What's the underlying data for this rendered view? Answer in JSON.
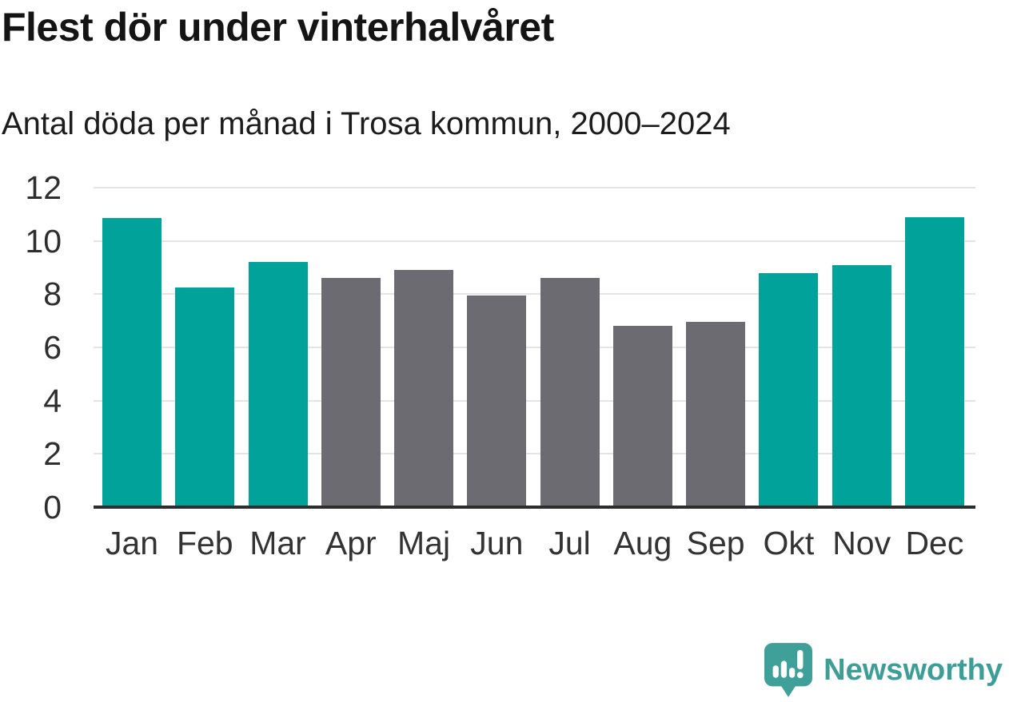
{
  "header": {
    "title": "Flest dör under vinterhalvåret",
    "subtitle": "Antal döda per månad i Trosa kommun, 2000–2024"
  },
  "chart_data": {
    "type": "bar",
    "title": "Flest dör under vinterhalvåret",
    "subtitle": "Antal döda per månad i Trosa kommun, 2000–2024",
    "categories": [
      "Jan",
      "Feb",
      "Mar",
      "Apr",
      "Maj",
      "Jun",
      "Jul",
      "Aug",
      "Sep",
      "Okt",
      "Nov",
      "Dec"
    ],
    "values": [
      10.85,
      8.25,
      9.2,
      8.6,
      8.9,
      7.95,
      8.6,
      6.8,
      6.95,
      8.8,
      9.1,
      10.9
    ],
    "bar_colors": [
      "#00a29a",
      "#00a29a",
      "#00a29a",
      "#6c6b71",
      "#6c6b71",
      "#6c6b71",
      "#6c6b71",
      "#6c6b71",
      "#6c6b71",
      "#00a29a",
      "#00a29a",
      "#00a29a"
    ],
    "colors": {
      "winter_teal": "#00a29a",
      "summer_gray": "#6c6b71",
      "axis": "#2d2d2d",
      "grid": "#e3e3e3"
    },
    "xlabel": "",
    "ylabel": "",
    "ylim": [
      0,
      12
    ],
    "yticks": [
      0,
      2,
      4,
      6,
      8,
      10,
      12
    ],
    "grid": "horizontal",
    "legend": "none"
  },
  "footer": {
    "brand": "Newsworthy",
    "brand_color": "#3d9e97"
  }
}
